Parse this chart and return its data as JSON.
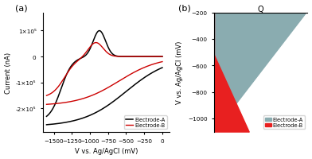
{
  "panel_a": {
    "xlabel": "V vs. Ag/AgCl (mV)",
    "ylabel": "Current (nA)",
    "label_a": "Electrode-A",
    "label_b": "Electrode-B",
    "color_a": "black",
    "color_b": "red",
    "xlim": [
      -1650,
      100
    ],
    "ylim": [
      -290000.0,
      170000.0
    ],
    "yticks": [
      -200000.0,
      -100000.0,
      0,
      100000.0
    ],
    "ytick_labels": [
      "-2×10⁵",
      "-1×10⁵",
      "0",
      "1×10⁵"
    ]
  },
  "panel_b": {
    "xlabel": "Q",
    "ylabel": "V vs. Ag/AgCl (mV)",
    "label_a": "Electrode-A",
    "label_b": "Electrode-B",
    "color_a": "#8aacb0",
    "color_b": "#e82020",
    "ylim_top": -1100,
    "ylim_bottom": -200,
    "yticks": [
      -200,
      -400,
      -600,
      -800,
      -1000
    ]
  }
}
